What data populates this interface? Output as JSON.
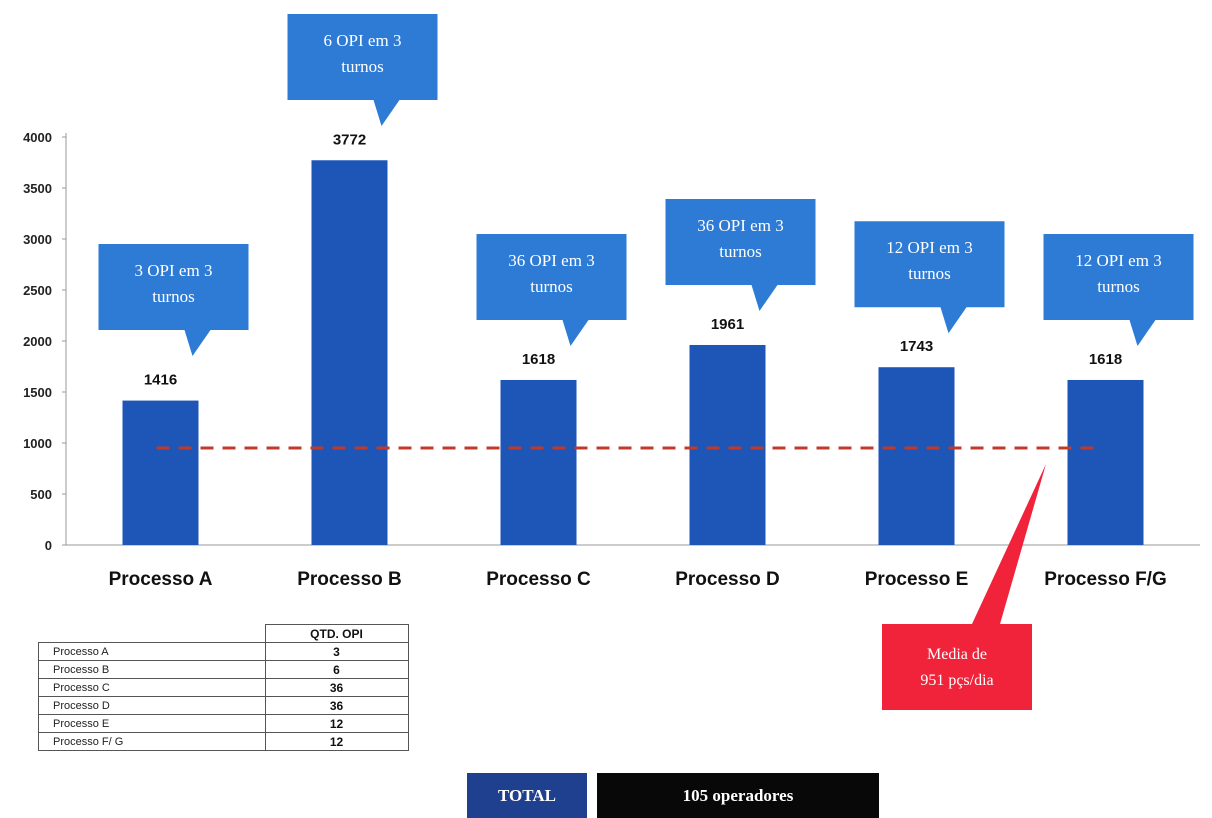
{
  "chart_data": {
    "type": "bar",
    "categories": [
      "Processo A",
      "Processo B",
      "Processo C",
      "Processo D",
      "Processo E",
      "Processo F/G"
    ],
    "values": [
      1416,
      3772,
      1618,
      1961,
      1743,
      1618
    ],
    "value_labels": [
      "1416",
      "3772",
      "1618",
      "1961",
      "1743",
      "1618"
    ],
    "yticks": [
      0,
      500,
      1000,
      1500,
      2000,
      2500,
      3000,
      3500,
      4000
    ],
    "ylim": [
      0,
      4000
    ],
    "bar_color": "#1e56b8",
    "average_line": {
      "value": 951,
      "color": "#c0392b"
    },
    "callouts": [
      {
        "line1": "3 OPI em 3",
        "line2": "turnos"
      },
      {
        "line1": "6 OPI em 3",
        "line2": "turnos"
      },
      {
        "line1": "36 OPI em 3",
        "line2": "turnos"
      },
      {
        "line1": "36 OPI em 3",
        "line2": "turnos"
      },
      {
        "line1": "12 OPI em 3",
        "line2": "turnos"
      },
      {
        "line1": "12 OPI em 3",
        "line2": "turnos"
      }
    ],
    "callout_color": "#2e7bd6",
    "average_callout": {
      "line1": "Media de",
      "line2": "951 pçs/dia",
      "color": "#f0233a"
    }
  },
  "table": {
    "header": "QTD. OPI",
    "rows": [
      {
        "name": "Processo A",
        "qty": "3"
      },
      {
        "name": "Processo B",
        "qty": "6"
      },
      {
        "name": "Processo C",
        "qty": "36"
      },
      {
        "name": "Processo D",
        "qty": "36"
      },
      {
        "name": "Processo E",
        "qty": "12"
      },
      {
        "name": "Processo F/ G",
        "qty": "12"
      }
    ]
  },
  "total": {
    "label": "TOTAL",
    "value": "105 operadores"
  }
}
